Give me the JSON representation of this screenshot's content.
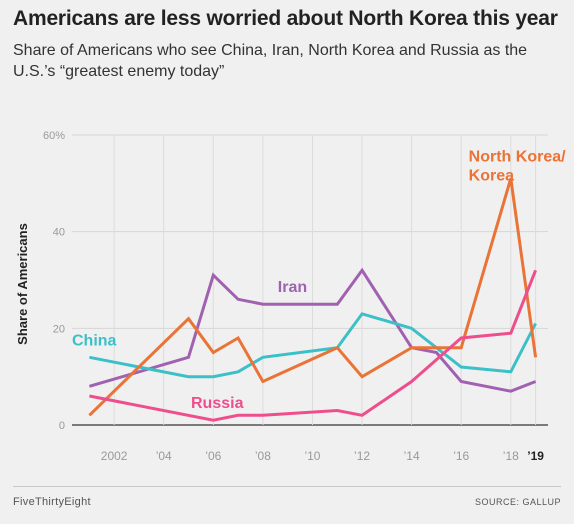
{
  "title": "Americans are less worried about North Korea this year",
  "subtitle": "Share of Americans who see China, Iran, North Korea and Russia as the U.S.’s “greatest enemy today”",
  "footer": {
    "left": "FiveThirtyEight",
    "right": "SOURCE: GALLUP"
  },
  "chart_data": {
    "type": "line",
    "title": "Americans are less worried about North Korea this year",
    "subtitle": "Share of Americans who see China, Iran, North Korea and Russia as the U.S.’s “greatest enemy today”",
    "xlabel": "",
    "ylabel": "Share of Americans",
    "xlim": [
      2000.3,
      2019.5
    ],
    "ylim": [
      0,
      60
    ],
    "grid": true,
    "x_ticks": [
      {
        "x": 2002,
        "label": "2002"
      },
      {
        "x": 2004,
        "label": "’04"
      },
      {
        "x": 2006,
        "label": "’06"
      },
      {
        "x": 2008,
        "label": "’08"
      },
      {
        "x": 2010,
        "label": "’10"
      },
      {
        "x": 2012,
        "label": "’12"
      },
      {
        "x": 2014,
        "label": "’14"
      },
      {
        "x": 2016,
        "label": "’16"
      },
      {
        "x": 2018,
        "label": "’18"
      },
      {
        "x": 2019,
        "label": "’19",
        "bold": true
      }
    ],
    "y_ticks": [
      {
        "y": 0,
        "label": "0"
      },
      {
        "y": 20,
        "label": "20"
      },
      {
        "y": 40,
        "label": "40"
      },
      {
        "y": 60,
        "label": "60%"
      }
    ],
    "series": [
      {
        "name": "Iran",
        "color": "#a062b0",
        "label_pos": {
          "x": 2008.6,
          "y": 27.5
        },
        "points": [
          [
            2001,
            8
          ],
          [
            2005,
            14
          ],
          [
            2006,
            31
          ],
          [
            2007,
            26
          ],
          [
            2008,
            25
          ],
          [
            2011,
            25
          ],
          [
            2012,
            32
          ],
          [
            2014,
            16
          ],
          [
            2015,
            15
          ],
          [
            2016,
            9
          ],
          [
            2018,
            7
          ],
          [
            2019,
            9
          ]
        ]
      },
      {
        "name": "China",
        "color": "#3cc0c8",
        "label_pos": {
          "x": 2000.3,
          "y": 16.5
        },
        "points": [
          [
            2001,
            14
          ],
          [
            2005,
            10
          ],
          [
            2006,
            10
          ],
          [
            2007,
            11
          ],
          [
            2008,
            14
          ],
          [
            2011,
            16
          ],
          [
            2012,
            23
          ],
          [
            2014,
            20
          ],
          [
            2015,
            16
          ],
          [
            2016,
            12
          ],
          [
            2018,
            11
          ],
          [
            2019,
            21
          ]
        ]
      },
      {
        "name": "North Korea/\nKorea",
        "color": "#ea7336",
        "label_pos": {
          "x": 2016.3,
          "y": 54.5
        },
        "points": [
          [
            2001,
            2
          ],
          [
            2005,
            22
          ],
          [
            2006,
            15
          ],
          [
            2007,
            18
          ],
          [
            2008,
            9
          ],
          [
            2011,
            16
          ],
          [
            2012,
            10
          ],
          [
            2014,
            16
          ],
          [
            2016,
            16
          ],
          [
            2018,
            51
          ],
          [
            2019,
            14
          ]
        ]
      },
      {
        "name": "Russia",
        "color": "#ee4e8d",
        "label_pos": {
          "x": 2005.1,
          "y": 3.5
        },
        "points": [
          [
            2001,
            6
          ],
          [
            2006,
            1
          ],
          [
            2007,
            2
          ],
          [
            2008,
            2
          ],
          [
            2011,
            3
          ],
          [
            2012,
            2
          ],
          [
            2014,
            9
          ],
          [
            2016,
            18
          ],
          [
            2018,
            19
          ],
          [
            2019,
            32
          ]
        ]
      }
    ]
  }
}
